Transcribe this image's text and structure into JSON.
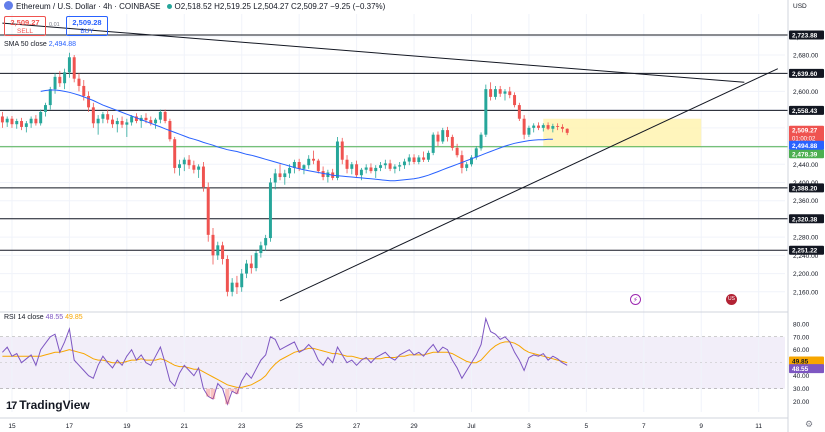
{
  "header": {
    "symbol": "Ethereum / U.S. Dollar · 4h · COINBASE",
    "ohlc": "O2,518.52 H2,519.25 L2,504.27 C2,509.27 −9.25 (−0.37%)"
  },
  "trade": {
    "sell_price": "2,509.27",
    "sell_label": "SELL",
    "spread": "0.01",
    "buy_price": "2,509.28",
    "buy_label": "BUY"
  },
  "indicators": {
    "sma_label": "SMA 50 close",
    "sma_value": "2,494.88",
    "rsi_label": "RSI 14 close",
    "rsi_value": "48.55",
    "rsi_ma_value": "49.85"
  },
  "branding": {
    "logo_text": "TradingView"
  },
  "axis": {
    "currency": "USD"
  },
  "events": {
    "event1_symbol": "⚡",
    "event2_symbol": "US"
  },
  "colors": {
    "up": "#26a69a",
    "down": "#ef5350",
    "sma": "#2962ff",
    "rsi": "#7e57c2",
    "rsi_ma": "#f7a600",
    "support": "#4caf50",
    "zone": "#fff3b0"
  },
  "chart_data": {
    "type": "candlestick",
    "price_range": [
      2120,
      2770
    ],
    "price_ticks": [
      2160,
      2200,
      2240,
      2280,
      2320,
      2360,
      2400,
      2440,
      2480,
      2520,
      2560,
      2600,
      2640,
      2680,
      2720
    ],
    "x_ticks": [
      {
        "label": "15",
        "bar": 2
      },
      {
        "label": "17",
        "bar": 14
      },
      {
        "label": "19",
        "bar": 26
      },
      {
        "label": "21",
        "bar": 38
      },
      {
        "label": "23",
        "bar": 50
      },
      {
        "label": "25",
        "bar": 62
      },
      {
        "label": "27",
        "bar": 74
      },
      {
        "label": "29",
        "bar": 86
      },
      {
        "label": "Jul",
        "bar": 98
      },
      {
        "label": "3",
        "bar": 110
      },
      {
        "label": "5",
        "bar": 122
      },
      {
        "label": "7",
        "bar": 134
      },
      {
        "label": "9",
        "bar": 146
      },
      {
        "label": "11",
        "bar": 158
      }
    ],
    "total_bars": 164,
    "levels": [
      {
        "label": "2,723.88",
        "value": 2723.88,
        "style": "dark"
      },
      {
        "label": "2,639.60",
        "value": 2639.6,
        "style": "dark"
      },
      {
        "label": "2,558.43",
        "value": 2558.43,
        "style": "dark"
      },
      {
        "label": "2,478.39",
        "value": 2478.39,
        "style": "green"
      },
      {
        "label": "2,388.20",
        "value": 2388.2,
        "style": "dark"
      },
      {
        "label": "2,320.38",
        "value": 2320.38,
        "style": "dark"
      },
      {
        "label": "2,251.22",
        "value": 2251.22,
        "style": "dark"
      }
    ],
    "price_tags": [
      {
        "label": "2,509.27",
        "sub": "01:00:02",
        "value": 2509.27,
        "color": "#ef5350"
      },
      {
        "label": "2,494.88",
        "value": 2494.88,
        "color": "#2962ff"
      }
    ],
    "trendlines": [
      {
        "from": [
          0,
          2750
        ],
        "to": [
          155,
          2620
        ]
      },
      {
        "from": [
          58,
          2140
        ],
        "to": [
          162,
          2650
        ]
      }
    ],
    "zone": {
      "from_bar": 113,
      "to_bar": 146,
      "top": 2540,
      "bottom": 2478
    },
    "candles": [
      [
        2545,
        2555,
        2520,
        2532
      ],
      [
        2532,
        2545,
        2522,
        2540
      ],
      [
        2540,
        2546,
        2520,
        2528
      ],
      [
        2528,
        2540,
        2518,
        2535
      ],
      [
        2535,
        2542,
        2515,
        2522
      ],
      [
        2522,
        2535,
        2510,
        2530
      ],
      [
        2530,
        2545,
        2520,
        2540
      ],
      [
        2540,
        2548,
        2525,
        2530
      ],
      [
        2530,
        2560,
        2525,
        2555
      ],
      [
        2555,
        2575,
        2545,
        2570
      ],
      [
        2570,
        2610,
        2560,
        2605
      ],
      [
        2605,
        2640,
        2595,
        2632
      ],
      [
        2632,
        2645,
        2610,
        2618
      ],
      [
        2618,
        2650,
        2605,
        2642
      ],
      [
        2642,
        2685,
        2630,
        2675
      ],
      [
        2675,
        2680,
        2620,
        2628
      ],
      [
        2628,
        2640,
        2600,
        2612
      ],
      [
        2612,
        2625,
        2580,
        2590
      ],
      [
        2590,
        2600,
        2555,
        2565
      ],
      [
        2565,
        2575,
        2520,
        2530
      ],
      [
        2530,
        2548,
        2505,
        2540
      ],
      [
        2540,
        2555,
        2530,
        2550
      ],
      [
        2550,
        2560,
        2530,
        2538
      ],
      [
        2538,
        2548,
        2520,
        2528
      ],
      [
        2528,
        2542,
        2510,
        2535
      ],
      [
        2535,
        2545,
        2520,
        2527
      ],
      [
        2527,
        2540,
        2500,
        2532
      ],
      [
        2532,
        2548,
        2525,
        2545
      ],
      [
        2545,
        2552,
        2530,
        2535
      ],
      [
        2535,
        2548,
        2520,
        2542
      ],
      [
        2542,
        2552,
        2530,
        2537
      ],
      [
        2537,
        2545,
        2525,
        2530
      ],
      [
        2530,
        2542,
        2518,
        2538
      ],
      [
        2538,
        2560,
        2530,
        2555
      ],
      [
        2555,
        2560,
        2530,
        2535
      ],
      [
        2535,
        2540,
        2490,
        2495
      ],
      [
        2495,
        2500,
        2420,
        2432
      ],
      [
        2432,
        2450,
        2415,
        2440
      ],
      [
        2440,
        2455,
        2425,
        2450
      ],
      [
        2450,
        2460,
        2430,
        2438
      ],
      [
        2438,
        2448,
        2420,
        2428
      ],
      [
        2428,
        2440,
        2410,
        2435
      ],
      [
        2435,
        2445,
        2380,
        2390
      ],
      [
        2390,
        2400,
        2270,
        2285
      ],
      [
        2285,
        2300,
        2220,
        2240
      ],
      [
        2240,
        2270,
        2230,
        2262
      ],
      [
        2262,
        2270,
        2220,
        2232
      ],
      [
        2232,
        2240,
        2150,
        2160
      ],
      [
        2160,
        2190,
        2150,
        2180
      ],
      [
        2180,
        2195,
        2155,
        2170
      ],
      [
        2170,
        2210,
        2160,
        2200
      ],
      [
        2200,
        2230,
        2190,
        2222
      ],
      [
        2222,
        2240,
        2200,
        2212
      ],
      [
        2212,
        2250,
        2205,
        2245
      ],
      [
        2245,
        2270,
        2235,
        2262
      ],
      [
        2262,
        2285,
        2250,
        2278
      ],
      [
        2278,
        2410,
        2270,
        2400
      ],
      [
        2400,
        2430,
        2385,
        2420
      ],
      [
        2420,
        2440,
        2405,
        2412
      ],
      [
        2412,
        2428,
        2395,
        2420
      ],
      [
        2420,
        2440,
        2410,
        2432
      ],
      [
        2432,
        2450,
        2420,
        2445
      ],
      [
        2445,
        2452,
        2425,
        2430
      ],
      [
        2430,
        2440,
        2418,
        2438
      ],
      [
        2438,
        2460,
        2430,
        2452
      ],
      [
        2452,
        2470,
        2440,
        2448
      ],
      [
        2448,
        2452,
        2420,
        2425
      ],
      [
        2425,
        2435,
        2405,
        2412
      ],
      [
        2412,
        2428,
        2400,
        2422
      ],
      [
        2422,
        2430,
        2405,
        2410
      ],
      [
        2410,
        2500,
        2405,
        2490
      ],
      [
        2490,
        2498,
        2440,
        2450
      ],
      [
        2450,
        2460,
        2420,
        2430
      ],
      [
        2430,
        2445,
        2418,
        2440
      ],
      [
        2440,
        2448,
        2410,
        2416
      ],
      [
        2416,
        2432,
        2405,
        2428
      ],
      [
        2428,
        2440,
        2420,
        2433
      ],
      [
        2433,
        2442,
        2420,
        2425
      ],
      [
        2425,
        2438,
        2410,
        2432
      ],
      [
        2432,
        2445,
        2425,
        2438
      ],
      [
        2438,
        2450,
        2430,
        2442
      ],
      [
        2442,
        2450,
        2425,
        2430
      ],
      [
        2430,
        2440,
        2420,
        2435
      ],
      [
        2435,
        2445,
        2425,
        2438
      ],
      [
        2438,
        2452,
        2430,
        2446
      ],
      [
        2446,
        2462,
        2438,
        2455
      ],
      [
        2455,
        2462,
        2440,
        2445
      ],
      [
        2445,
        2460,
        2440,
        2455
      ],
      [
        2455,
        2468,
        2445,
        2450
      ],
      [
        2450,
        2470,
        2445,
        2465
      ],
      [
        2465,
        2510,
        2460,
        2505
      ],
      [
        2505,
        2512,
        2480,
        2490
      ],
      [
        2490,
        2520,
        2485,
        2515
      ],
      [
        2515,
        2522,
        2490,
        2500
      ],
      [
        2500,
        2505,
        2470,
        2476
      ],
      [
        2476,
        2485,
        2455,
        2460
      ],
      [
        2460,
        2470,
        2420,
        2432
      ],
      [
        2432,
        2445,
        2425,
        2440
      ],
      [
        2440,
        2460,
        2435,
        2455
      ],
      [
        2455,
        2480,
        2450,
        2475
      ],
      [
        2475,
        2510,
        2470,
        2505
      ],
      [
        2505,
        2615,
        2500,
        2605
      ],
      [
        2605,
        2620,
        2580,
        2588
      ],
      [
        2588,
        2612,
        2582,
        2605
      ],
      [
        2605,
        2612,
        2588,
        2595
      ],
      [
        2595,
        2605,
        2580,
        2600
      ],
      [
        2600,
        2610,
        2585,
        2592
      ],
      [
        2592,
        2598,
        2565,
        2570
      ],
      [
        2570,
        2575,
        2535,
        2540
      ],
      [
        2540,
        2548,
        2495,
        2505
      ],
      [
        2505,
        2525,
        2500,
        2520
      ],
      [
        2520,
        2530,
        2510,
        2525
      ],
      [
        2525,
        2532,
        2515,
        2520
      ],
      [
        2520,
        2530,
        2512,
        2526
      ],
      [
        2526,
        2532,
        2515,
        2518
      ],
      [
        2518,
        2529,
        2510,
        2524
      ],
      [
        2524,
        2530,
        2515,
        2522
      ],
      [
        2522,
        2528,
        2510,
        2518
      ],
      [
        2518,
        2519,
        2504,
        2509
      ]
    ],
    "sma50": [
      2600,
      2602,
      2603,
      2603,
      2602,
      2600,
      2598,
      2595,
      2592,
      2588,
      2584,
      2580,
      2575,
      2570,
      2566,
      2562,
      2558,
      2554,
      2550,
      2546,
      2542,
      2538,
      2534,
      2530,
      2526,
      2522,
      2518,
      2514,
      2510,
      2506,
      2502,
      2498,
      2495,
      2492,
      2488,
      2485,
      2482,
      2478,
      2475,
      2472,
      2470,
      2468,
      2465,
      2462,
      2460,
      2457,
      2454,
      2451,
      2448,
      2445,
      2442,
      2439,
      2436,
      2433,
      2430,
      2428,
      2426,
      2424,
      2422,
      2420,
      2418,
      2416,
      2415,
      2414,
      2413,
      2412,
      2411,
      2410,
      2409,
      2408,
      2407,
      2406,
      2405,
      2404,
      2404,
      2405,
      2406,
      2407,
      2408,
      2410,
      2413,
      2416,
      2420,
      2424,
      2428,
      2432,
      2436,
      2440,
      2444,
      2448,
      2452,
      2456,
      2460,
      2464,
      2468,
      2472,
      2476,
      2480,
      2483,
      2486,
      2488,
      2490,
      2492,
      2493,
      2494,
      2494,
      2495,
      2495
    ],
    "sma_start_bar": 8,
    "rsi_range": [
      12,
      86
    ],
    "rsi_ticks": [
      20,
      30,
      40,
      50,
      60,
      70,
      80
    ],
    "rsi_bands": [
      30,
      70
    ],
    "rsi": [
      58,
      62,
      55,
      57,
      50,
      53,
      56,
      48,
      60,
      65,
      70,
      72,
      58,
      66,
      76,
      52,
      48,
      44,
      40,
      38,
      48,
      55,
      50,
      46,
      52,
      48,
      55,
      60,
      52,
      56,
      50,
      48,
      55,
      62,
      50,
      36,
      32,
      42,
      48,
      44,
      40,
      46,
      30,
      24,
      22,
      34,
      30,
      18,
      28,
      26,
      36,
      42,
      38,
      45,
      52,
      56,
      70,
      68,
      60,
      62,
      64,
      66,
      58,
      60,
      64,
      60,
      52,
      48,
      54,
      50,
      62,
      56,
      50,
      52,
      48,
      52,
      54,
      50,
      54,
      56,
      58,
      54,
      52,
      56,
      58,
      60,
      56,
      58,
      55,
      60,
      64,
      58,
      62,
      60,
      52,
      46,
      38,
      44,
      50,
      56,
      64,
      84,
      74,
      72,
      68,
      70,
      66,
      58,
      52,
      44,
      54,
      56,
      55,
      57,
      52,
      55,
      53,
      50,
      48
    ],
    "rsi_ma": [
      55,
      55,
      55,
      55,
      55,
      55,
      55,
      55,
      55,
      56,
      57,
      58,
      58,
      59,
      60,
      59,
      58,
      57,
      55,
      53,
      52,
      52,
      51,
      50,
      50,
      50,
      51,
      52,
      52,
      53,
      52,
      52,
      52,
      53,
      52,
      50,
      48,
      47,
      47,
      46,
      45,
      45,
      43,
      41,
      39,
      37,
      35,
      33,
      32,
      31,
      31,
      32,
      33,
      35,
      37,
      40,
      45,
      49,
      52,
      54,
      56,
      58,
      59,
      60,
      61,
      61,
      60,
      59,
      58,
      57,
      57,
      56,
      55,
      55,
      54,
      53,
      53,
      53,
      53,
      53,
      54,
      54,
      54,
      55,
      55,
      56,
      56,
      56,
      56,
      57,
      58,
      58,
      58,
      58,
      57,
      55,
      53,
      51,
      50,
      50,
      52,
      56,
      60,
      63,
      65,
      66,
      66,
      65,
      63,
      60,
      58,
      57,
      56,
      55,
      54,
      53,
      52,
      51,
      50
    ]
  }
}
